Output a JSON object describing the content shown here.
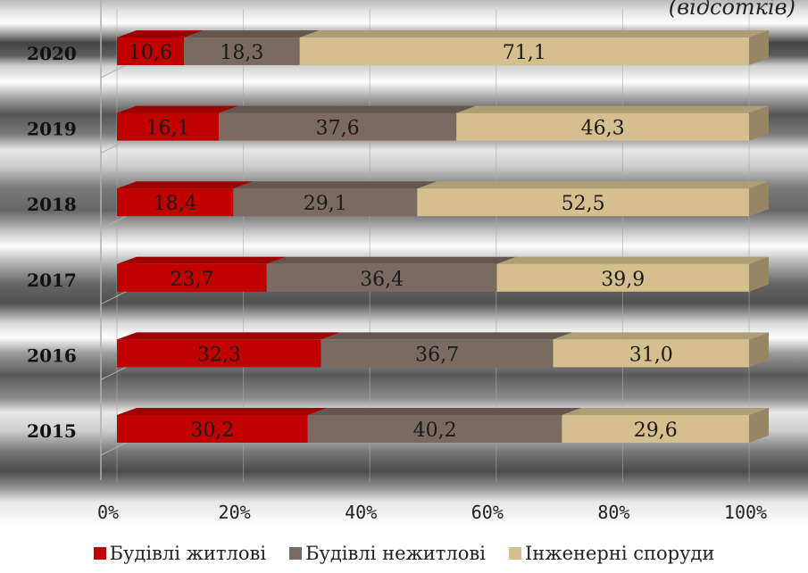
{
  "chart_data": {
    "type": "bar",
    "orientation": "horizontal",
    "stacked": "percent",
    "subtitle": "(відсотків)",
    "categories": [
      "2020",
      "2019",
      "2018",
      "2017",
      "2016",
      "2015"
    ],
    "series": [
      {
        "name": "Будівлі житлові",
        "color": "#c00000",
        "values": [
          10.6,
          16.1,
          18.4,
          23.7,
          32.3,
          30.2
        ],
        "labels": [
          "10,6",
          "16,1",
          "18,4",
          "23,7",
          "32,3",
          "30,2"
        ]
      },
      {
        "name": "Будівлі нежитлові",
        "color": "#7a6a62",
        "values": [
          18.3,
          37.6,
          29.1,
          36.4,
          36.7,
          40.2
        ],
        "labels": [
          "18,3",
          "37,6",
          "29,1",
          "36,4",
          "36,7",
          "40,2"
        ]
      },
      {
        "name": "Інженерні споруди",
        "color": "#d6bf8e",
        "values": [
          71.1,
          46.3,
          52.5,
          39.9,
          31.0,
          29.6
        ],
        "labels": [
          "71,1",
          "46,3",
          "52,5",
          "39,9",
          "31,0",
          "29,6"
        ]
      }
    ],
    "xaxis": {
      "ticks": [
        "0%",
        "20%",
        "40%",
        "60%",
        "80%",
        "100%"
      ],
      "range": [
        0,
        100
      ]
    },
    "legend_position": "bottom",
    "grid": true
  }
}
